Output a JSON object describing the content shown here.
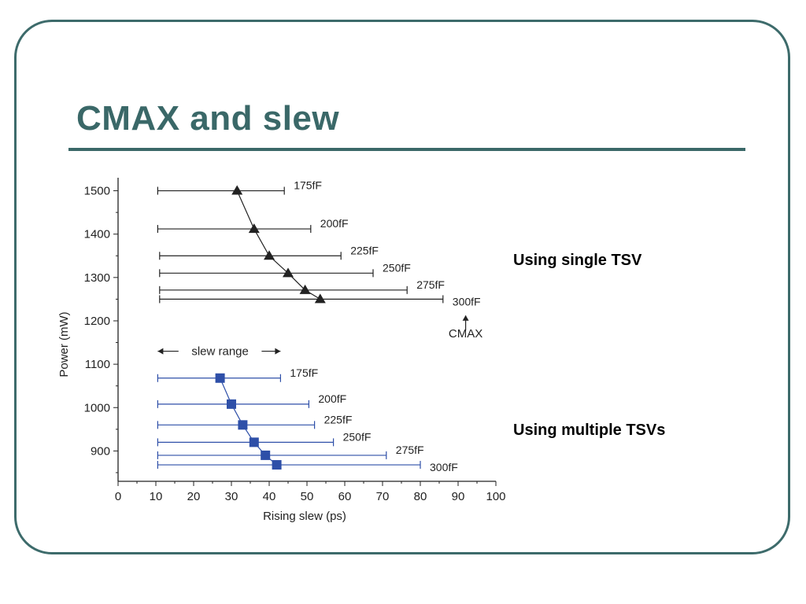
{
  "slide": {
    "title": "CMAX and slew",
    "note_single": "Using single TSV",
    "note_multiple": "Using multiple TSVs"
  },
  "colors": {
    "frame": "#3d6b6b",
    "title": "#3a6868",
    "single_series": "#222222",
    "multiple_series": "#2e4fa8"
  },
  "chart_data": {
    "type": "scatter",
    "xlabel": "Rising slew (ps)",
    "ylabel": "Power (mW)",
    "xlim": [
      0,
      100
    ],
    "ylim": [
      830,
      1530
    ],
    "xticks": [
      0,
      10,
      20,
      30,
      40,
      50,
      60,
      70,
      80,
      90,
      100
    ],
    "yticks": [
      900,
      1000,
      1100,
      1200,
      1300,
      1400,
      1500
    ],
    "grid": false,
    "annotations": {
      "slew_range": "slew range",
      "cmax": "CMAX"
    },
    "series": [
      {
        "marker": "triangle",
        "color": "#222222",
        "points": [
          {
            "label": "175fF",
            "x": 31.5,
            "y": 1500,
            "range": [
              10.5,
              44
            ]
          },
          {
            "label": "200fF",
            "x": 36,
            "y": 1412,
            "range": [
              10.5,
              51
            ]
          },
          {
            "label": "225fF",
            "x": 40,
            "y": 1350,
            "range": [
              11,
              59
            ]
          },
          {
            "label": "250fF",
            "x": 45,
            "y": 1310,
            "range": [
              11,
              67.5
            ]
          },
          {
            "label": "275fF",
            "x": 49.5,
            "y": 1271,
            "range": [
              11,
              76.5
            ]
          },
          {
            "label": "300fF",
            "x": 53.5,
            "y": 1250,
            "range": [
              11,
              86
            ]
          }
        ]
      },
      {
        "marker": "square",
        "color": "#2e4fa8",
        "points": [
          {
            "label": "175fF",
            "x": 27,
            "y": 1068,
            "range": [
              10.5,
              43
            ]
          },
          {
            "label": "200fF",
            "x": 30,
            "y": 1008,
            "range": [
              10.5,
              50.5
            ]
          },
          {
            "label": "225fF",
            "x": 33,
            "y": 960,
            "range": [
              10.5,
              52
            ]
          },
          {
            "label": "250fF",
            "x": 36,
            "y": 920,
            "range": [
              10.5,
              57
            ]
          },
          {
            "label": "275fF",
            "x": 39,
            "y": 890,
            "range": [
              10.5,
              71
            ]
          },
          {
            "label": "300fF",
            "x": 42,
            "y": 868,
            "range": [
              10.5,
              80
            ]
          }
        ]
      }
    ]
  }
}
